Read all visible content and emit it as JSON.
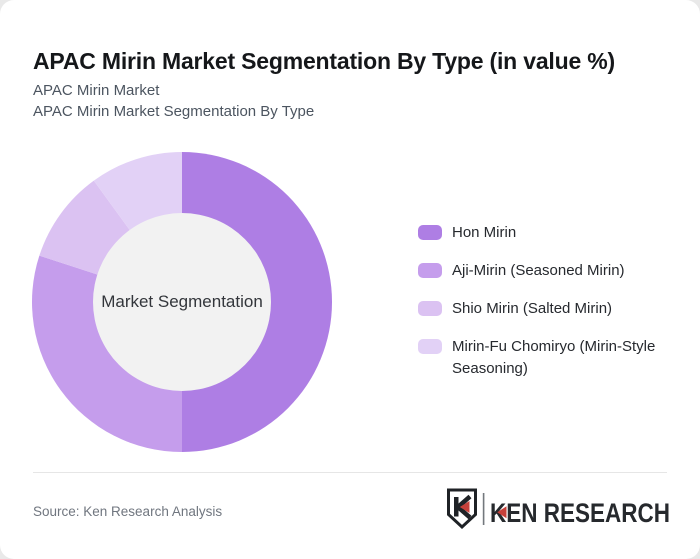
{
  "page": {
    "title": "APAC Mirin Market Segmentation By Type (in value %)",
    "subtitle_lines": [
      "APAC Mirin Market",
      "APAC Mirin Market Segmentation By Type"
    ]
  },
  "chart_data": {
    "type": "pie",
    "variant": "donut",
    "title": "APAC Mirin Market Segmentation By Type (in value %)",
    "unit": "value %",
    "center_label": "Market Segmentation",
    "data_labels": "none",
    "start_angle_deg": 0,
    "direction": "clockwise",
    "legend_position": "right",
    "inner_radius_ratio": 0.59,
    "inner_circle_color": "#f2f2f2",
    "series": [
      {
        "name": "Hon Mirin",
        "value": 50,
        "color": "#ae7ee4"
      },
      {
        "name": "Aji-Mirin (Seasoned Mirin)",
        "value": 30,
        "color": "#c59dec"
      },
      {
        "name": "Shio Mirin (Salted Mirin)",
        "value": 10,
        "color": "#dbc2f2"
      },
      {
        "name": "Mirin-Fu Chomiryo (Mirin-Style Seasoning)",
        "value": 10,
        "color": "#e2d1f6"
      }
    ]
  },
  "footer": {
    "source_label": "Source: Ken Research Analysis",
    "logo": {
      "brand": "KEN RESEARCH",
      "monogram": "K",
      "accent_red": "#c6403a",
      "text_color": "#26292d"
    }
  }
}
